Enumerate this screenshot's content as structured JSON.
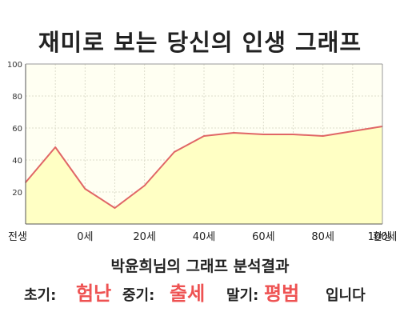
{
  "title": "재미로 보는 당신의 인생 그래프",
  "chart_data": {
    "type": "area",
    "x_labels": [
      "전생",
      "0세",
      "20세",
      "40세",
      "60세",
      "80세",
      "100세",
      "환생"
    ],
    "x": [
      -10,
      0,
      10,
      20,
      30,
      40,
      50,
      60,
      70,
      80,
      90,
      100,
      110
    ],
    "values": [
      26,
      48,
      22,
      10,
      24,
      45,
      55,
      57,
      56,
      56,
      55,
      58,
      61
    ],
    "ylim": [
      0,
      100
    ],
    "yticks": [
      20,
      40,
      60,
      80,
      100
    ],
    "grid": true,
    "colors": {
      "line": "#e06666",
      "fill": "#ffffc4",
      "plot_bg": "#fffff2",
      "grid": "#ddddcc"
    }
  },
  "result": {
    "heading": "박윤희님의 그래프 분석결과",
    "early_label": "초기:",
    "early_value": "험난",
    "mid_label": "중기:",
    "mid_value": "출세",
    "late_label": "말기:",
    "late_value": "평범",
    "ending": "입니다"
  }
}
